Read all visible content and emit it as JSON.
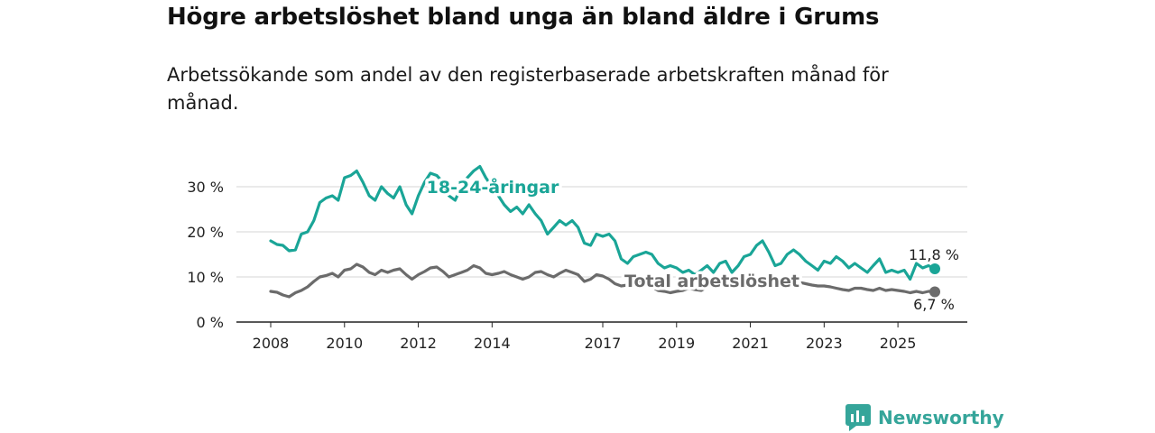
{
  "title": "Högre arbetslöshet bland unga än bland äldre i Grums",
  "subtitle": "Arbetssökande som andel av den registerbaserade arbetskraften månad för månad.",
  "brand": {
    "name": "Newsworthy",
    "color": "#35a59a"
  },
  "chart_data": {
    "type": "line",
    "xlim": [
      2008,
      2026.2
    ],
    "ylim": [
      0,
      35
    ],
    "y_ticks": [
      0,
      10,
      20,
      30
    ],
    "y_tick_labels": [
      "0 %",
      "10 %",
      "20 %",
      "30 %"
    ],
    "x_ticks": [
      2008,
      2010,
      2012,
      2014,
      2017,
      2019,
      2021,
      2023,
      2025
    ],
    "x_tick_labels": [
      "2008",
      "2010",
      "2012",
      "2014",
      "2017",
      "2019",
      "2021",
      "2023",
      "2025"
    ],
    "series": [
      {
        "name": "18-24-åringar",
        "color": "#1aa597",
        "end_label": "11,8 %",
        "points": [
          [
            2008.0,
            18.0
          ],
          [
            2008.17,
            17.2
          ],
          [
            2008.33,
            17.0
          ],
          [
            2008.5,
            15.8
          ],
          [
            2008.67,
            16.0
          ],
          [
            2008.83,
            19.5
          ],
          [
            2009.0,
            20.0
          ],
          [
            2009.17,
            22.5
          ],
          [
            2009.33,
            26.5
          ],
          [
            2009.5,
            27.5
          ],
          [
            2009.67,
            28.0
          ],
          [
            2009.83,
            27.0
          ],
          [
            2010.0,
            32.0
          ],
          [
            2010.17,
            32.5
          ],
          [
            2010.33,
            33.5
          ],
          [
            2010.5,
            31.0
          ],
          [
            2010.67,
            28.0
          ],
          [
            2010.83,
            27.0
          ],
          [
            2011.0,
            30.0
          ],
          [
            2011.17,
            28.5
          ],
          [
            2011.33,
            27.5
          ],
          [
            2011.5,
            30.0
          ],
          [
            2011.67,
            26.0
          ],
          [
            2011.83,
            24.0
          ],
          [
            2012.0,
            28.0
          ],
          [
            2012.17,
            31.0
          ],
          [
            2012.33,
            33.0
          ],
          [
            2012.5,
            32.5
          ],
          [
            2012.67,
            31.0
          ],
          [
            2012.83,
            28.0
          ],
          [
            2013.0,
            27.0
          ],
          [
            2013.17,
            30.0
          ],
          [
            2013.33,
            32.0
          ],
          [
            2013.5,
            33.5
          ],
          [
            2013.67,
            34.5
          ],
          [
            2013.83,
            32.0
          ],
          [
            2014.0,
            30.0
          ],
          [
            2014.17,
            28.0
          ],
          [
            2014.33,
            26.0
          ],
          [
            2014.5,
            24.5
          ],
          [
            2014.67,
            25.5
          ],
          [
            2014.83,
            24.0
          ],
          [
            2015.0,
            26.0
          ],
          [
            2015.17,
            24.0
          ],
          [
            2015.33,
            22.5
          ],
          [
            2015.5,
            19.5
          ],
          [
            2015.67,
            21.0
          ],
          [
            2015.83,
            22.5
          ],
          [
            2016.0,
            21.5
          ],
          [
            2016.17,
            22.5
          ],
          [
            2016.33,
            21.0
          ],
          [
            2016.5,
            17.5
          ],
          [
            2016.67,
            17.0
          ],
          [
            2016.83,
            19.5
          ],
          [
            2017.0,
            19.0
          ],
          [
            2017.17,
            19.5
          ],
          [
            2017.33,
            18.0
          ],
          [
            2017.5,
            14.0
          ],
          [
            2017.67,
            13.0
          ],
          [
            2017.83,
            14.5
          ],
          [
            2018.0,
            15.0
          ],
          [
            2018.17,
            15.5
          ],
          [
            2018.33,
            15.0
          ],
          [
            2018.5,
            13.0
          ],
          [
            2018.67,
            12.0
          ],
          [
            2018.83,
            12.5
          ],
          [
            2019.0,
            12.0
          ],
          [
            2019.17,
            11.0
          ],
          [
            2019.33,
            11.5
          ],
          [
            2019.5,
            10.5
          ],
          [
            2019.67,
            11.5
          ],
          [
            2019.83,
            12.5
          ],
          [
            2020.0,
            11.0
          ],
          [
            2020.17,
            13.0
          ],
          [
            2020.33,
            13.5
          ],
          [
            2020.5,
            11.0
          ],
          [
            2020.67,
            12.5
          ],
          [
            2020.83,
            14.5
          ],
          [
            2021.0,
            15.0
          ],
          [
            2021.17,
            17.0
          ],
          [
            2021.33,
            18.0
          ],
          [
            2021.5,
            15.5
          ],
          [
            2021.67,
            12.5
          ],
          [
            2021.83,
            13.0
          ],
          [
            2022.0,
            15.0
          ],
          [
            2022.17,
            16.0
          ],
          [
            2022.33,
            15.0
          ],
          [
            2022.5,
            13.5
          ],
          [
            2022.67,
            12.5
          ],
          [
            2022.83,
            11.5
          ],
          [
            2023.0,
            13.5
          ],
          [
            2023.17,
            13.0
          ],
          [
            2023.33,
            14.5
          ],
          [
            2023.5,
            13.5
          ],
          [
            2023.67,
            12.0
          ],
          [
            2023.83,
            13.0
          ],
          [
            2024.0,
            12.0
          ],
          [
            2024.17,
            11.0
          ],
          [
            2024.33,
            12.5
          ],
          [
            2024.5,
            14.0
          ],
          [
            2024.67,
            11.0
          ],
          [
            2024.83,
            11.5
          ],
          [
            2025.0,
            11.0
          ],
          [
            2025.17,
            11.5
          ],
          [
            2025.33,
            9.5
          ],
          [
            2025.5,
            13.0
          ],
          [
            2025.67,
            12.0
          ],
          [
            2025.83,
            12.5
          ],
          [
            2026.0,
            11.8
          ]
        ]
      },
      {
        "name": "Total arbetslöshet",
        "color": "#6b6b6b",
        "end_label": "6,7 %",
        "points": [
          [
            2008.0,
            6.8
          ],
          [
            2008.17,
            6.6
          ],
          [
            2008.33,
            6.0
          ],
          [
            2008.5,
            5.6
          ],
          [
            2008.67,
            6.5
          ],
          [
            2008.83,
            7.0
          ],
          [
            2009.0,
            7.8
          ],
          [
            2009.17,
            9.0
          ],
          [
            2009.33,
            10.0
          ],
          [
            2009.5,
            10.3
          ],
          [
            2009.67,
            10.8
          ],
          [
            2009.83,
            10.0
          ],
          [
            2010.0,
            11.5
          ],
          [
            2010.17,
            11.8
          ],
          [
            2010.33,
            12.8
          ],
          [
            2010.5,
            12.2
          ],
          [
            2010.67,
            11.0
          ],
          [
            2010.83,
            10.5
          ],
          [
            2011.0,
            11.5
          ],
          [
            2011.17,
            11.0
          ],
          [
            2011.33,
            11.5
          ],
          [
            2011.5,
            11.8
          ],
          [
            2011.67,
            10.5
          ],
          [
            2011.83,
            9.5
          ],
          [
            2012.0,
            10.5
          ],
          [
            2012.17,
            11.2
          ],
          [
            2012.33,
            12.0
          ],
          [
            2012.5,
            12.2
          ],
          [
            2012.67,
            11.2
          ],
          [
            2012.83,
            10.0
          ],
          [
            2013.0,
            10.5
          ],
          [
            2013.17,
            11.0
          ],
          [
            2013.33,
            11.5
          ],
          [
            2013.5,
            12.5
          ],
          [
            2013.67,
            12.0
          ],
          [
            2013.83,
            10.8
          ],
          [
            2014.0,
            10.5
          ],
          [
            2014.17,
            10.8
          ],
          [
            2014.33,
            11.2
          ],
          [
            2014.5,
            10.5
          ],
          [
            2014.67,
            10.0
          ],
          [
            2014.83,
            9.5
          ],
          [
            2015.0,
            10.0
          ],
          [
            2015.17,
            11.0
          ],
          [
            2015.33,
            11.2
          ],
          [
            2015.5,
            10.5
          ],
          [
            2015.67,
            10.0
          ],
          [
            2015.83,
            10.8
          ],
          [
            2016.0,
            11.5
          ],
          [
            2016.17,
            11.0
          ],
          [
            2016.33,
            10.5
          ],
          [
            2016.5,
            9.0
          ],
          [
            2016.67,
            9.5
          ],
          [
            2016.83,
            10.5
          ],
          [
            2017.0,
            10.2
          ],
          [
            2017.17,
            9.5
          ],
          [
            2017.33,
            8.5
          ],
          [
            2017.5,
            8.0
          ],
          [
            2017.67,
            8.2
          ],
          [
            2017.83,
            8.5
          ],
          [
            2018.0,
            8.8
          ],
          [
            2018.17,
            8.5
          ],
          [
            2018.33,
            7.8
          ],
          [
            2018.5,
            7.0
          ],
          [
            2018.67,
            6.8
          ],
          [
            2018.83,
            6.5
          ],
          [
            2019.0,
            6.8
          ],
          [
            2019.17,
            7.0
          ],
          [
            2019.33,
            7.5
          ],
          [
            2019.5,
            7.2
          ],
          [
            2019.67,
            7.0
          ],
          [
            2019.83,
            7.8
          ],
          [
            2020.0,
            8.2
          ],
          [
            2020.17,
            8.8
          ],
          [
            2020.33,
            8.5
          ],
          [
            2020.5,
            8.0
          ],
          [
            2020.67,
            8.5
          ],
          [
            2020.83,
            9.0
          ],
          [
            2021.0,
            9.2
          ],
          [
            2021.17,
            9.8
          ],
          [
            2021.33,
            10.0
          ],
          [
            2021.5,
            9.5
          ],
          [
            2021.67,
            8.5
          ],
          [
            2021.83,
            8.8
          ],
          [
            2022.0,
            9.0
          ],
          [
            2022.17,
            9.2
          ],
          [
            2022.33,
            8.8
          ],
          [
            2022.5,
            8.5
          ],
          [
            2022.67,
            8.2
          ],
          [
            2022.83,
            8.0
          ],
          [
            2023.0,
            8.0
          ],
          [
            2023.17,
            7.8
          ],
          [
            2023.33,
            7.5
          ],
          [
            2023.5,
            7.2
          ],
          [
            2023.67,
            7.0
          ],
          [
            2023.83,
            7.5
          ],
          [
            2024.0,
            7.5
          ],
          [
            2024.17,
            7.2
          ],
          [
            2024.33,
            7.0
          ],
          [
            2024.5,
            7.5
          ],
          [
            2024.67,
            7.0
          ],
          [
            2024.83,
            7.2
          ],
          [
            2025.0,
            7.0
          ],
          [
            2025.17,
            6.8
          ],
          [
            2025.33,
            6.5
          ],
          [
            2025.5,
            6.8
          ],
          [
            2025.67,
            6.5
          ],
          [
            2025.83,
            6.8
          ],
          [
            2026.0,
            6.7
          ]
        ]
      }
    ]
  }
}
